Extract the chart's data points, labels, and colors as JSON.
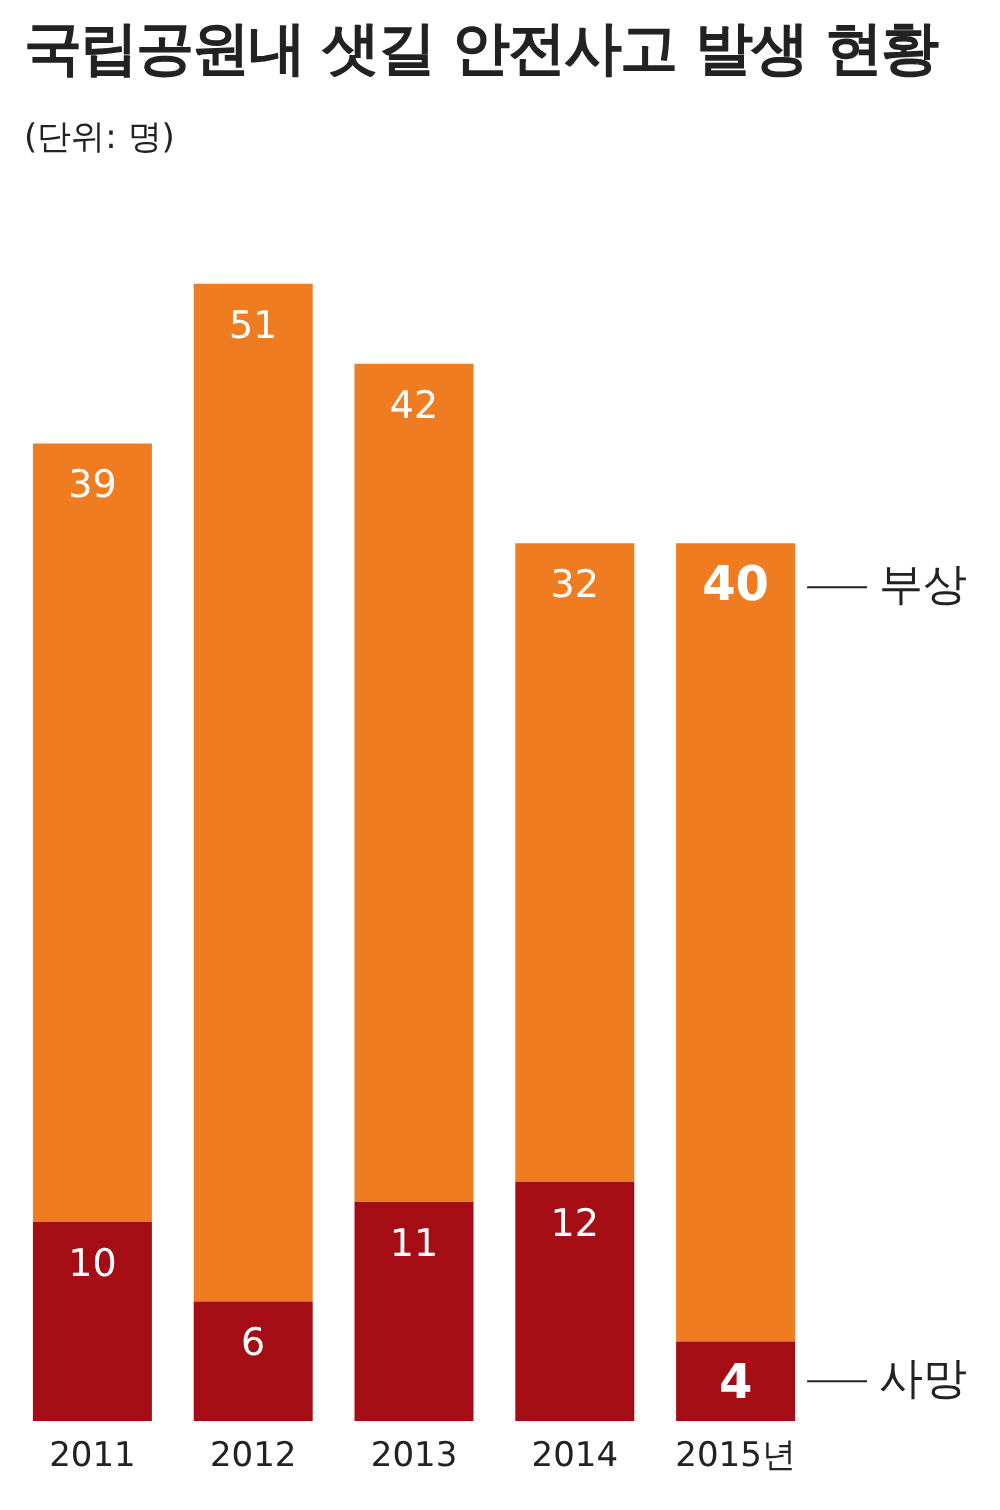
{
  "chart_data": {
    "type": "bar",
    "title": "국립공원내 샛길 안전사고 발생 현황",
    "subtitle": "(단위: 명)",
    "categories": [
      "2011",
      "2012",
      "2013",
      "2014",
      "2015년"
    ],
    "stacked": true,
    "data_labels": true,
    "tick_labels": "x",
    "grid": false,
    "legend": false,
    "series": [
      {
        "name": "사망",
        "color": "#a50d14",
        "values": [
          10,
          6,
          11,
          12,
          4
        ]
      },
      {
        "name": "부상",
        "color": "#f07c22",
        "values": [
          39,
          51,
          42,
          32,
          40
        ]
      }
    ]
  }
}
